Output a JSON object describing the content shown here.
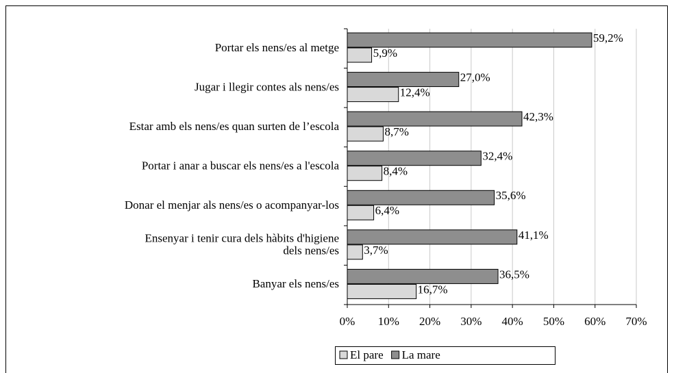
{
  "chart_data": {
    "type": "barh",
    "categories": [
      "Portar els nens/es al metge",
      "Jugar i llegir contes als nens/es",
      "Estar amb els nens/es quan surten de l’escola",
      "Portar i anar a buscar els nens/es a l'escola",
      "Donar el menjar als nens/es o acompanyar-los",
      "Ensenyar i tenir cura dels hàbits d'higiene\ndels nens/es",
      "Banyar els nens/es"
    ],
    "series": [
      {
        "name": "El pare",
        "color": "#d9d9d9",
        "values": [
          5.9,
          12.4,
          8.7,
          8.4,
          6.4,
          3.7,
          16.7
        ],
        "value_labels": [
          "5,9%",
          "12,4%",
          "8,7%",
          "8,4%",
          "6,4%",
          "3,7%",
          "16,7%"
        ]
      },
      {
        "name": "La mare",
        "color": "#8e8e8e",
        "values": [
          59.2,
          27.0,
          42.3,
          32.4,
          35.6,
          41.1,
          36.5
        ],
        "value_labels": [
          "59,2%",
          "27,0%",
          "42,3%",
          "32,4%",
          "35,6%",
          "41,1%",
          "36,5%"
        ]
      }
    ],
    "xlim": [
      0,
      70
    ],
    "xticks": [
      {
        "value": 0,
        "label": "0%"
      },
      {
        "value": 10,
        "label": "10%"
      },
      {
        "value": 20,
        "label": "20%"
      },
      {
        "value": 30,
        "label": "30%"
      },
      {
        "value": 40,
        "label": "40%"
      },
      {
        "value": 50,
        "label": "50%"
      },
      {
        "value": 60,
        "label": "60%"
      },
      {
        "value": 70,
        "label": "70%"
      }
    ],
    "grid": true,
    "legend": "bottom"
  }
}
